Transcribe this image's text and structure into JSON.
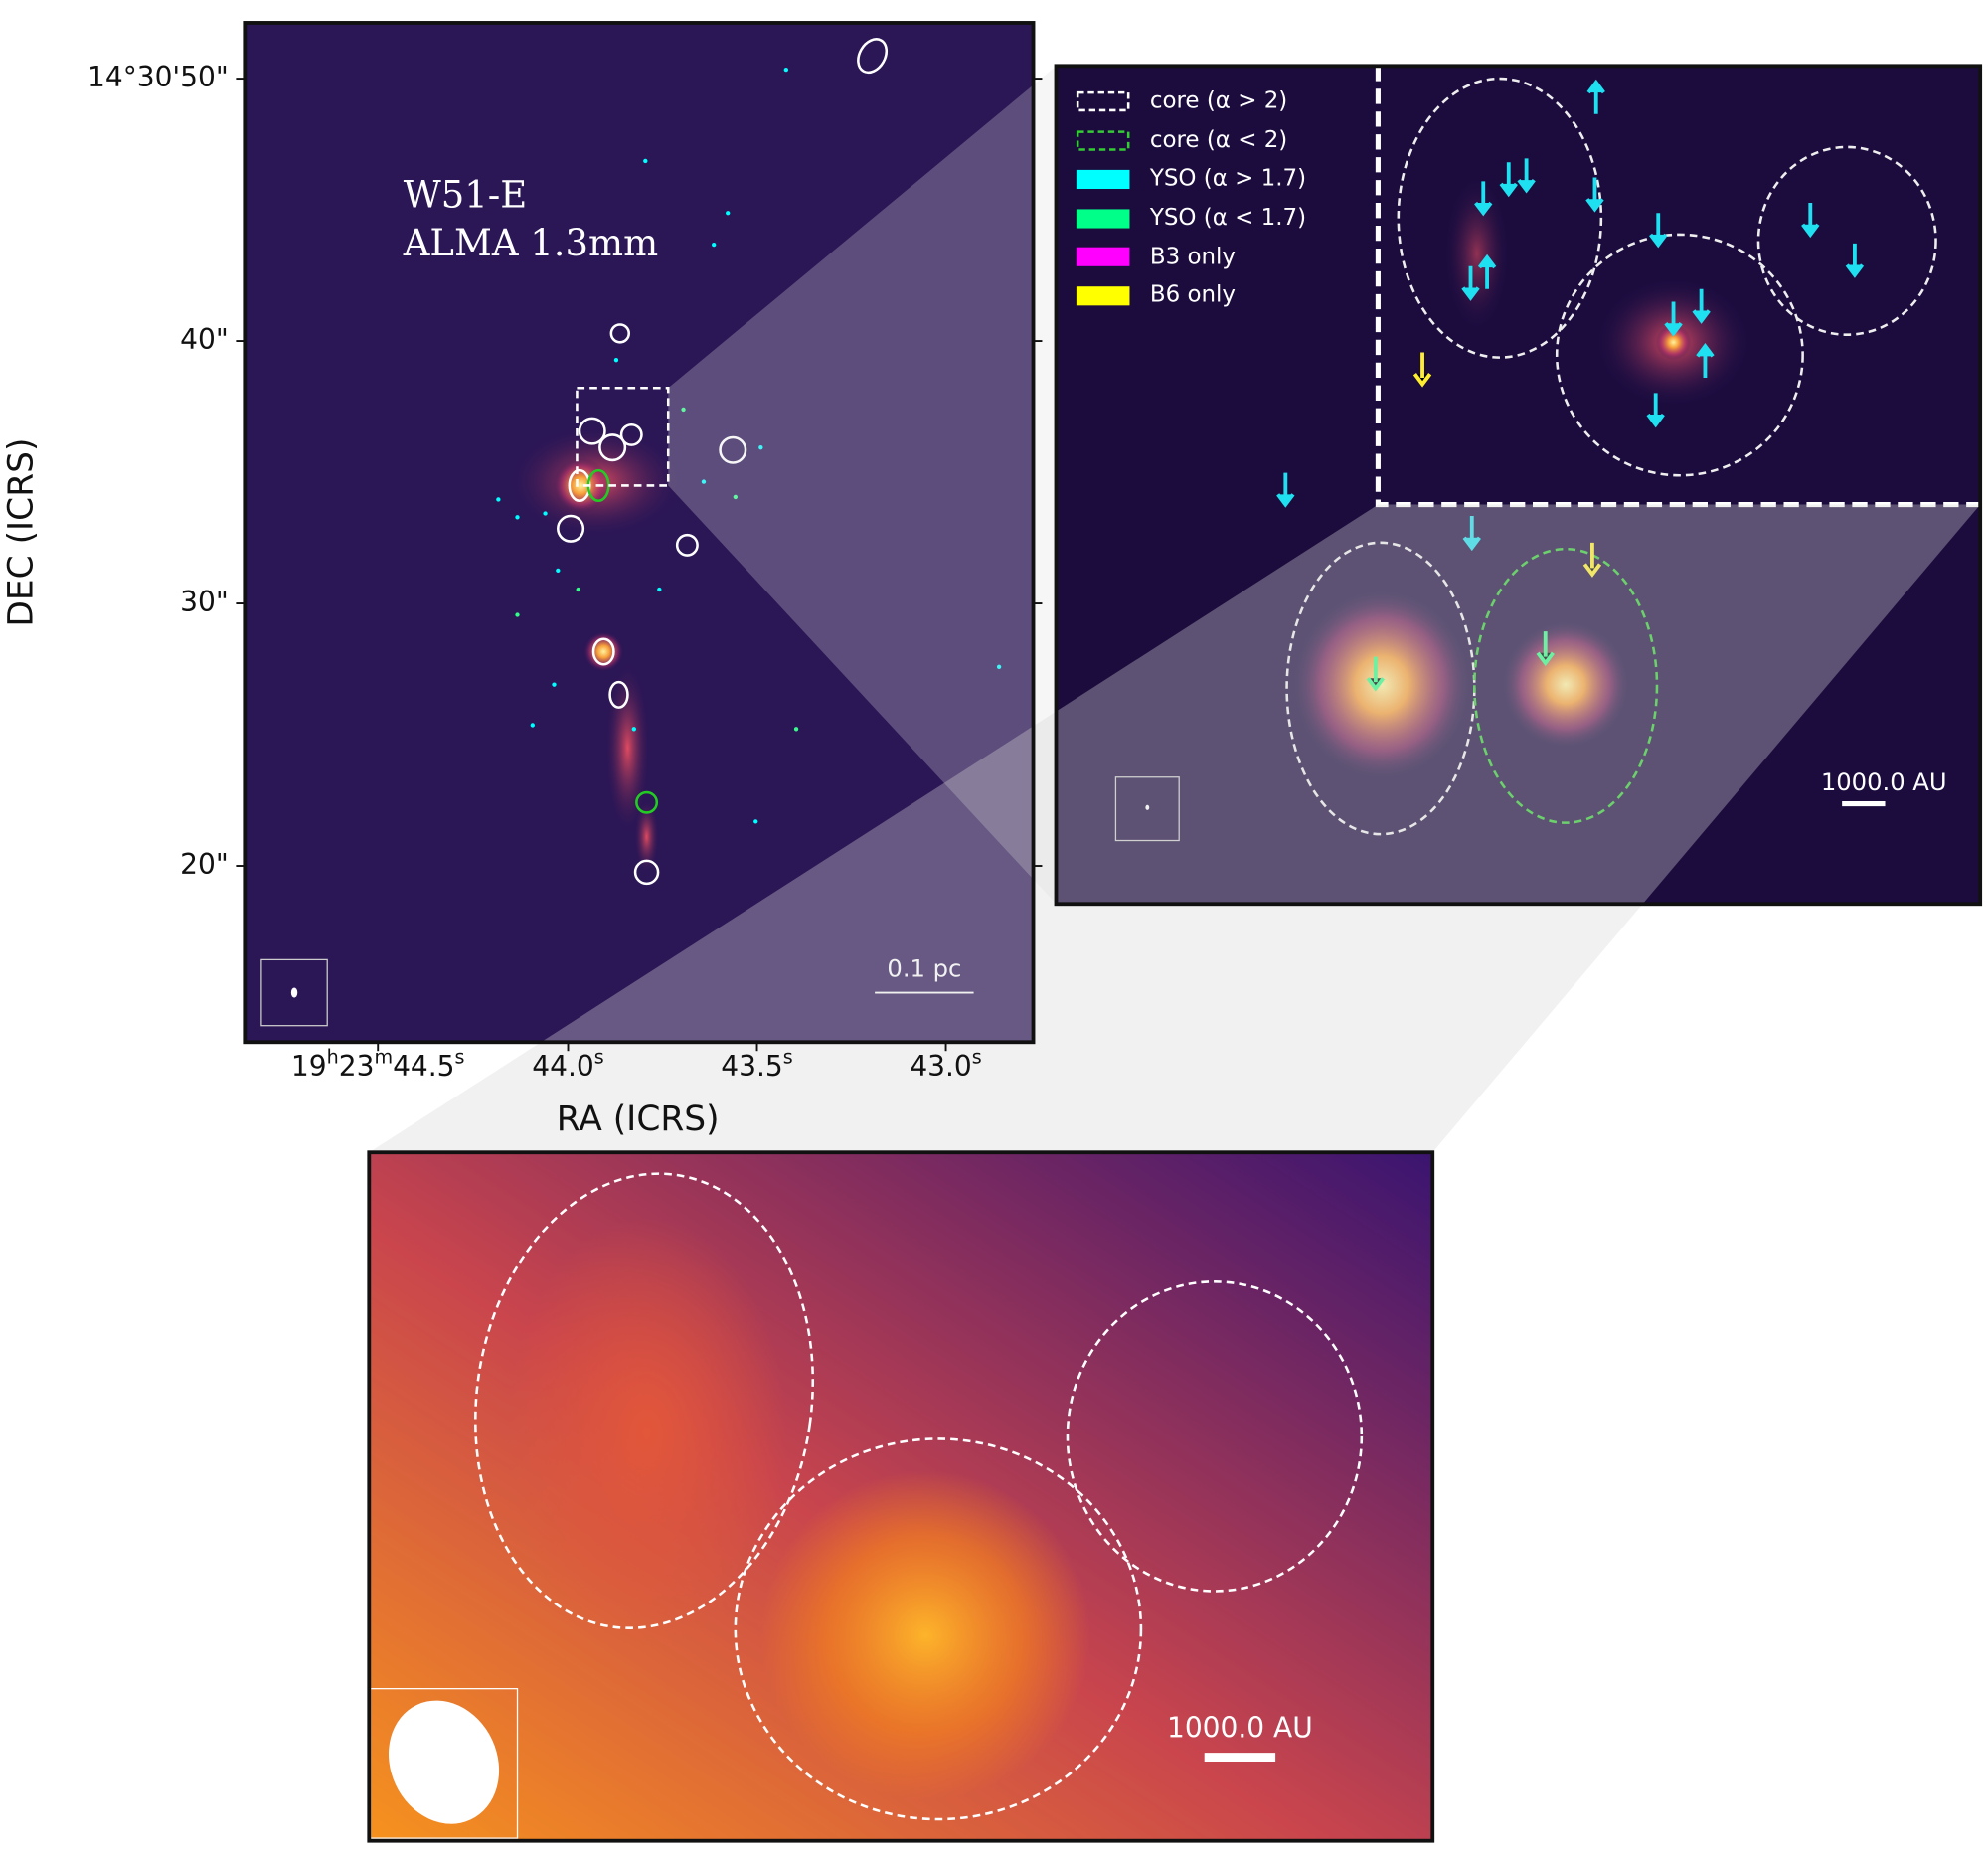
{
  "main_panel": {
    "title": [
      "W51-E",
      "ALMA 1.3mm"
    ],
    "xlabel": "RA (ICRS)",
    "ylabel": "DEC (ICRS)",
    "xticks": [
      [
        "19",
        "h",
        "23",
        "m",
        "44.5",
        "s"
      ],
      [
        "44.0",
        "s"
      ],
      [
        "43.5",
        "s"
      ],
      [
        "43.0",
        "s"
      ]
    ],
    "yticks": [
      "14°30'50\"",
      "40\"",
      "30\"",
      "20\""
    ],
    "scalebar": "0.1 pc"
  },
  "zoom_panel": {
    "legend": [
      "core (α > 2)",
      "core (α < 2)",
      "YSO (α > 1.7)",
      "YSO (α < 1.7)",
      "B3 only",
      "B6 only"
    ],
    "scalebar": "1000.0 AU"
  },
  "detail_panel": {
    "scalebar": "1000.0 AU"
  }
}
